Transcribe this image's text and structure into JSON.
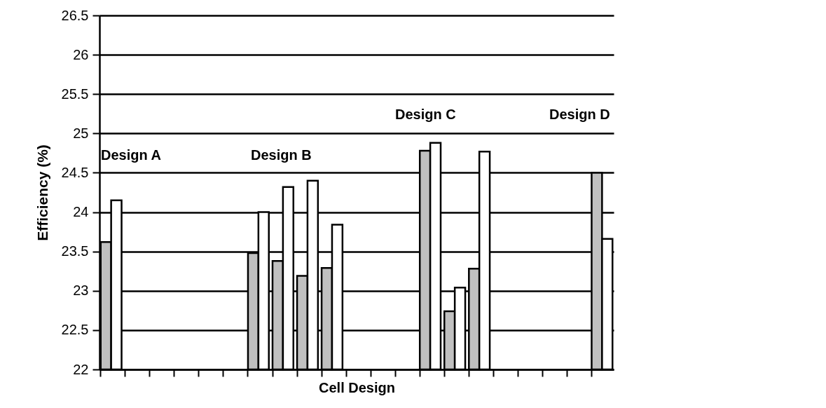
{
  "chart_data": {
    "type": "bar",
    "xlabel": "Cell Design",
    "ylabel": "Efficiency    (%)",
    "categories": [
      null,
      null,
      null,
      null,
      null,
      null,
      null,
      null,
      null,
      null,
      null,
      null,
      null,
      null,
      null,
      null,
      null,
      null,
      null,
      null,
      null
    ],
    "series": [
      {
        "color": "#c0c0c0",
        "values": [
          23.62,
          null,
          null,
          null,
          null,
          null,
          23.48,
          23.38,
          23.19,
          23.29,
          null,
          null,
          null,
          24.78,
          22.74,
          23.28,
          null,
          null,
          null,
          null,
          24.5
        ]
      },
      {
        "color": "#ffffff",
        "values": [
          24.15,
          null,
          null,
          null,
          null,
          null,
          24.0,
          24.32,
          24.4,
          23.84,
          null,
          null,
          null,
          24.88,
          23.04,
          24.77,
          null,
          null,
          null,
          null,
          23.66
        ]
      }
    ],
    "ylim": [
      22,
      26.5
    ],
    "yticks": [
      22,
      22.5,
      23,
      23.5,
      24,
      24.5,
      25,
      25.5,
      26,
      26.5
    ],
    "grid": "y",
    "legend": false,
    "annotations": [
      "Design A",
      "Design B",
      "Design C",
      "Design D"
    ]
  }
}
